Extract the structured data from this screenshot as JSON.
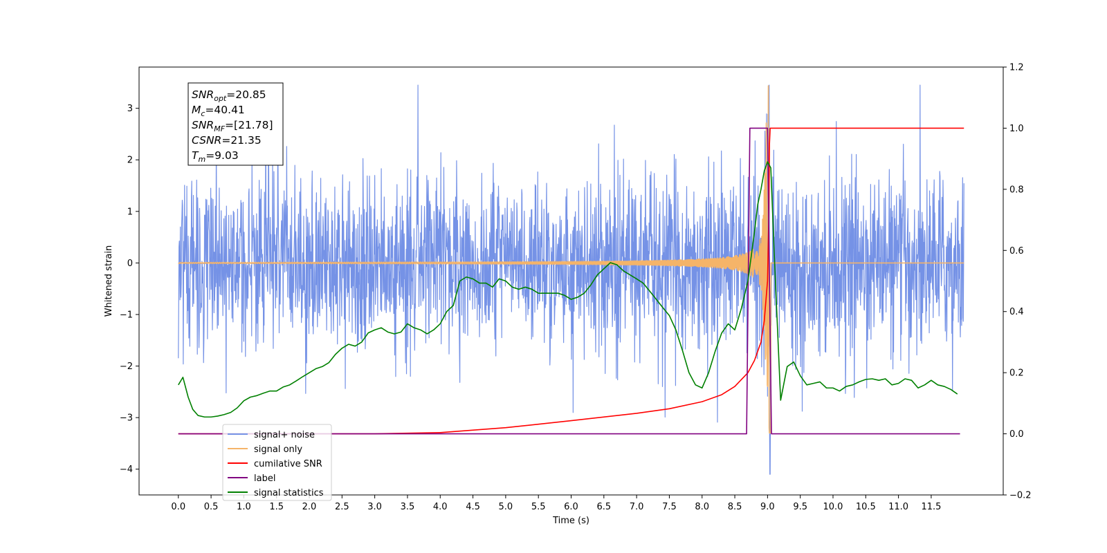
{
  "chart_data": {
    "type": "line",
    "xlabel": "Time (s)",
    "ylabel": "Whitened strain",
    "y2label": "",
    "xlim": [
      -0.6,
      12.6
    ],
    "ylim": [
      -4.5,
      3.8
    ],
    "y2lim": [
      -0.2,
      1.2
    ],
    "xticks": [
      0.0,
      0.5,
      1.0,
      1.5,
      2.0,
      2.5,
      3.0,
      3.5,
      4.0,
      4.5,
      5.0,
      5.5,
      6.0,
      6.5,
      7.0,
      7.5,
      8.0,
      8.5,
      9.0,
      9.5,
      10.0,
      10.5,
      11.0,
      11.5
    ],
    "xtick_labels": [
      "0.0",
      "0.5",
      "1.0",
      "1.5",
      "2.0",
      "2.5",
      "3.0",
      "3.5",
      "4.0",
      "4.5",
      "5.0",
      "5.5",
      "6.0",
      "6.5",
      "7.0",
      "7.5",
      "8.0",
      "8.5",
      "9.0",
      "9.5",
      "10.0",
      "10.5",
      "11.0",
      "11.5"
    ],
    "yticks": [
      3,
      2,
      1,
      0,
      -1,
      -2,
      -3,
      -4
    ],
    "ytick_labels": [
      "3",
      "2",
      "1",
      "0",
      "−1",
      "−2",
      "−3",
      "−4"
    ],
    "y2ticks": [
      1.2,
      1.0,
      0.8,
      0.6,
      0.4,
      0.2,
      0.0,
      -0.2
    ],
    "y2tick_labels": [
      "1.2",
      "1.0",
      "0.8",
      "0.6",
      "0.4",
      "0.2",
      "0.0",
      "−0.2"
    ],
    "grid": false,
    "legend_position": "lower-left",
    "annotation": [
      {
        "main": "SNR",
        "sub": "opt",
        "rest": "=20.85"
      },
      {
        "main": "M",
        "sub": "c",
        "rest": "=40.41"
      },
      {
        "main": "SNR",
        "sub": "MF",
        "rest": "=[21.78]"
      },
      {
        "main": "CSNR",
        "sub": "",
        "rest": "=21.35"
      },
      {
        "main": "T",
        "sub": "m",
        "rest": "=9.03"
      }
    ],
    "series": [
      {
        "name": "signal+ noise",
        "color": "#7592e6",
        "axis": "left",
        "kind": "noise",
        "x_range": [
          0.0,
          12.0
        ],
        "typical_envelope": [
          -1.3,
          1.3
        ],
        "extremes": [
          -4.1,
          3.45
        ]
      },
      {
        "name": "signal only",
        "color": "#f5b469",
        "axis": "left",
        "kind": "chirp",
        "x_range": [
          0.0,
          12.0
        ],
        "merger_time": 9.03,
        "peak_amplitude": 3.45
      },
      {
        "name": "cumilative SNR",
        "color": "#ff0000",
        "axis": "right",
        "x": [
          0.0,
          3.0,
          4.0,
          5.0,
          6.0,
          7.0,
          7.5,
          8.0,
          8.3,
          8.5,
          8.7,
          8.8,
          8.9,
          8.95,
          9.0,
          9.02,
          9.03,
          9.04,
          12.0
        ],
        "values": [
          0.0,
          0.0,
          0.004,
          0.02,
          0.043,
          0.067,
          0.082,
          0.105,
          0.128,
          0.155,
          0.2,
          0.24,
          0.3,
          0.37,
          0.5,
          0.72,
          0.95,
          1.0,
          1.0
        ]
      },
      {
        "name": "label",
        "color": "#800080",
        "axis": "right",
        "x": [
          0.0,
          8.68,
          8.73,
          9.0,
          9.06,
          11.94
        ],
        "values": [
          0.0,
          0.0,
          1.0,
          1.0,
          0.0,
          0.0
        ]
      },
      {
        "name": "signal statistics",
        "color": "#008000",
        "axis": "right",
        "x": [
          0.0,
          0.07,
          0.15,
          0.22,
          0.3,
          0.4,
          0.5,
          0.6,
          0.7,
          0.8,
          0.9,
          1.0,
          1.1,
          1.2,
          1.3,
          1.4,
          1.5,
          1.6,
          1.7,
          1.8,
          1.9,
          2.0,
          2.1,
          2.2,
          2.3,
          2.4,
          2.5,
          2.6,
          2.7,
          2.8,
          2.9,
          3.0,
          3.1,
          3.2,
          3.3,
          3.4,
          3.5,
          3.6,
          3.7,
          3.8,
          3.9,
          4.0,
          4.1,
          4.2,
          4.3,
          4.4,
          4.5,
          4.6,
          4.7,
          4.8,
          4.9,
          5.0,
          5.1,
          5.2,
          5.3,
          5.4,
          5.5,
          5.6,
          5.7,
          5.8,
          5.9,
          6.0,
          6.1,
          6.2,
          6.3,
          6.4,
          6.5,
          6.6,
          6.7,
          6.8,
          6.9,
          7.0,
          7.1,
          7.2,
          7.3,
          7.4,
          7.5,
          7.6,
          7.7,
          7.8,
          7.9,
          8.0,
          8.1,
          8.2,
          8.3,
          8.4,
          8.5,
          8.6,
          8.7,
          8.8,
          8.85,
          8.9,
          8.95,
          9.0,
          9.05,
          9.1,
          9.2,
          9.3,
          9.4,
          9.5,
          9.6,
          9.7,
          9.8,
          9.9,
          10.0,
          10.1,
          10.2,
          10.3,
          10.4,
          10.5,
          10.6,
          10.7,
          10.8,
          10.9,
          11.0,
          11.1,
          11.2,
          11.3,
          11.4,
          11.5,
          11.6,
          11.7,
          11.8,
          11.9
        ],
        "values": [
          0.16,
          0.185,
          0.12,
          0.08,
          0.06,
          0.055,
          0.055,
          0.058,
          0.063,
          0.07,
          0.085,
          0.108,
          0.12,
          0.125,
          0.133,
          0.14,
          0.14,
          0.153,
          0.16,
          0.173,
          0.187,
          0.2,
          0.213,
          0.22,
          0.233,
          0.26,
          0.28,
          0.293,
          0.287,
          0.3,
          0.33,
          0.34,
          0.347,
          0.333,
          0.327,
          0.333,
          0.36,
          0.347,
          0.34,
          0.327,
          0.34,
          0.36,
          0.4,
          0.42,
          0.5,
          0.513,
          0.507,
          0.493,
          0.493,
          0.48,
          0.507,
          0.5,
          0.48,
          0.473,
          0.48,
          0.473,
          0.46,
          0.46,
          0.46,
          0.46,
          0.453,
          0.44,
          0.447,
          0.46,
          0.487,
          0.52,
          0.54,
          0.56,
          0.553,
          0.533,
          0.52,
          0.507,
          0.493,
          0.467,
          0.44,
          0.413,
          0.387,
          0.34,
          0.273,
          0.2,
          0.16,
          0.15,
          0.2,
          0.27,
          0.33,
          0.36,
          0.34,
          0.41,
          0.5,
          0.66,
          0.75,
          0.8,
          0.86,
          0.89,
          0.87,
          0.6,
          0.11,
          0.22,
          0.235,
          0.19,
          0.16,
          0.165,
          0.17,
          0.15,
          0.15,
          0.14,
          0.155,
          0.16,
          0.17,
          0.178,
          0.18,
          0.175,
          0.18,
          0.16,
          0.165,
          0.18,
          0.175,
          0.15,
          0.16,
          0.175,
          0.16,
          0.155,
          0.145,
          0.13
        ]
      }
    ]
  }
}
